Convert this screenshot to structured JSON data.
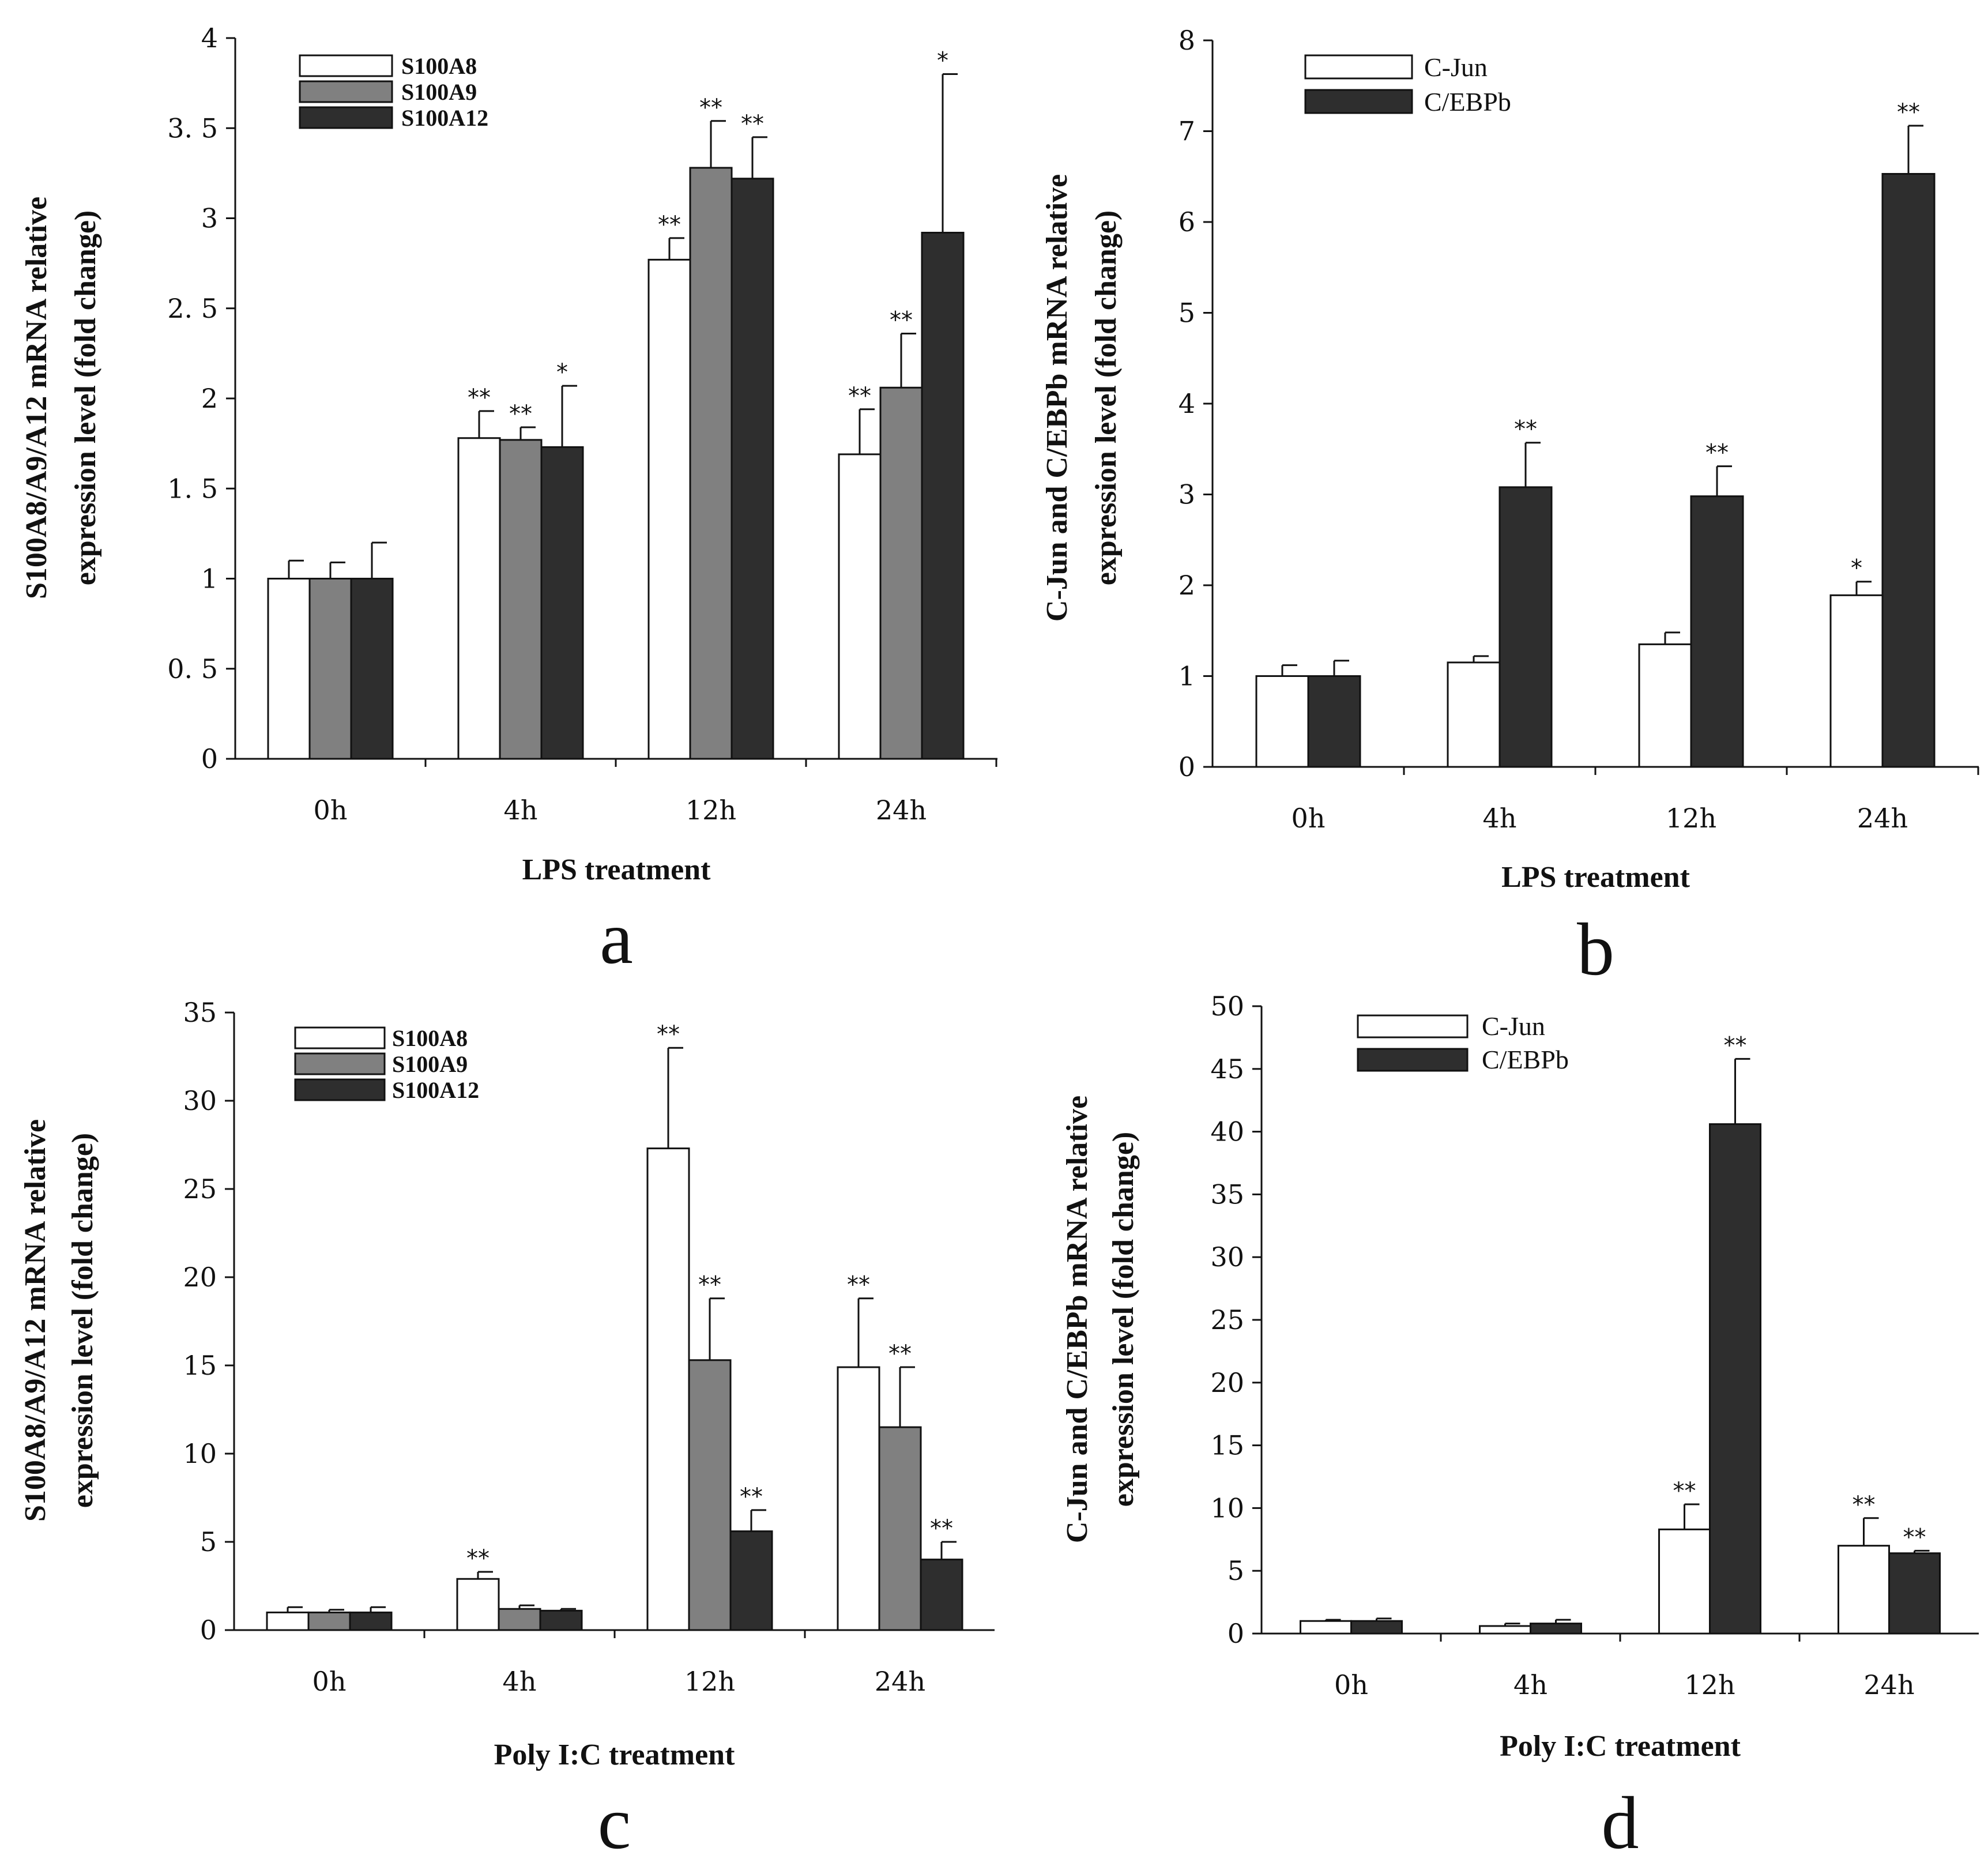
{
  "colors": {
    "S100A8": "#ffffff",
    "S100A9": "#808080",
    "S100A12": "#2e2e2e",
    "C-Jun": "#ffffff",
    "C/EBPb": "#2e2e2e",
    "stroke": "#111111"
  },
  "chart_data": [
    {
      "panel": "a",
      "type": "bar",
      "xlabel": "LPS treatment",
      "ylabel_lines": [
        "S100A8/A9/A12 mRNA relative",
        "expression level (fold change)"
      ],
      "ylim": [
        0,
        4
      ],
      "yticks": [
        0,
        0.5,
        1,
        1.5,
        2,
        2.5,
        3,
        3.5,
        4
      ],
      "ytick_labels": [
        "0",
        "0. 5",
        "1",
        "1. 5",
        "2",
        "2. 5",
        "3",
        "3. 5",
        "4"
      ],
      "categories": [
        "0h",
        "4h",
        "12h",
        "24h"
      ],
      "legend_style": "bold",
      "series": [
        {
          "name": "S100A8",
          "values": [
            1.0,
            1.78,
            2.77,
            1.69
          ],
          "errors": [
            0.1,
            0.15,
            0.12,
            0.25
          ],
          "sig": [
            "",
            "**",
            "**",
            "**"
          ]
        },
        {
          "name": "S100A9",
          "values": [
            1.0,
            1.77,
            3.28,
            2.06
          ],
          "errors": [
            0.09,
            0.07,
            0.26,
            0.3
          ],
          "sig": [
            "",
            "**",
            "**",
            "**"
          ]
        },
        {
          "name": "S100A12",
          "values": [
            1.0,
            1.73,
            3.22,
            2.92
          ],
          "errors": [
            0.2,
            0.34,
            0.23,
            0.88
          ],
          "sig": [
            "",
            "*",
            "**",
            "*"
          ]
        }
      ]
    },
    {
      "panel": "b",
      "type": "bar",
      "xlabel": "LPS treatment",
      "ylabel_lines": [
        "C-Jun and C/EBPb mRNA relative",
        "expression level (fold change)"
      ],
      "ylim": [
        0,
        8
      ],
      "yticks": [
        0,
        1,
        2,
        3,
        4,
        5,
        6,
        7,
        8
      ],
      "ytick_labels": [
        "0",
        "1",
        "2",
        "3",
        "4",
        "5",
        "6",
        "7",
        "8"
      ],
      "categories": [
        "0h",
        "4h",
        "12h",
        "24h"
      ],
      "legend_style": "plain",
      "series": [
        {
          "name": "C-Jun",
          "values": [
            1.0,
            1.15,
            1.35,
            1.89
          ],
          "errors": [
            0.12,
            0.07,
            0.13,
            0.15
          ],
          "sig": [
            "",
            "",
            "",
            "*"
          ]
        },
        {
          "name": "C/EBPb",
          "values": [
            1.0,
            3.08,
            2.98,
            6.53
          ],
          "errors": [
            0.17,
            0.49,
            0.33,
            0.53
          ],
          "sig": [
            "",
            "**",
            "**",
            "**"
          ]
        }
      ]
    },
    {
      "panel": "c",
      "type": "bar",
      "xlabel": "Poly I:C treatment",
      "ylabel_lines": [
        "S100A8/A9/A12 mRNA relative",
        "expression level (fold change)"
      ],
      "ylim": [
        0,
        35
      ],
      "yticks": [
        0,
        5,
        10,
        15,
        20,
        25,
        30,
        35
      ],
      "ytick_labels": [
        "0",
        "5",
        "10",
        "15",
        "20",
        "25",
        "30",
        "35"
      ],
      "categories": [
        "0h",
        "4h",
        "12h",
        "24h"
      ],
      "legend_style": "bold",
      "series": [
        {
          "name": "S100A8",
          "values": [
            1.0,
            2.9,
            27.3,
            14.9
          ],
          "errors": [
            0.3,
            0.4,
            5.7,
            3.9
          ],
          "sig": [
            "",
            "**",
            "**",
            "**"
          ]
        },
        {
          "name": "S100A9",
          "values": [
            1.0,
            1.2,
            15.3,
            11.5
          ],
          "errors": [
            0.15,
            0.2,
            3.5,
            3.4
          ],
          "sig": [
            "",
            "",
            "**",
            "**"
          ]
        },
        {
          "name": "S100A12",
          "values": [
            1.0,
            1.1,
            5.6,
            4.0
          ],
          "errors": [
            0.3,
            0.1,
            1.2,
            1.0
          ],
          "sig": [
            "",
            "",
            "**",
            "**"
          ]
        }
      ]
    },
    {
      "panel": "d",
      "type": "bar",
      "xlabel": "Poly I:C treatment",
      "ylabel_lines": [
        "C-Jun and C/EBPb mRNA relative",
        "expression level (fold change)"
      ],
      "ylim": [
        0,
        50
      ],
      "yticks": [
        0,
        5,
        10,
        15,
        20,
        25,
        30,
        35,
        40,
        45,
        50
      ],
      "ytick_labels": [
        "0",
        "5",
        "10",
        "15",
        "20",
        "25",
        "30",
        "35",
        "40",
        "45",
        "50"
      ],
      "categories": [
        "0h",
        "4h",
        "12h",
        "24h"
      ],
      "legend_style": "plain",
      "series": [
        {
          "name": "C-Jun",
          "values": [
            1.0,
            0.6,
            8.3,
            7.0
          ],
          "errors": [
            0.1,
            0.2,
            2.0,
            2.2
          ],
          "sig": [
            "",
            "",
            "**",
            "**"
          ]
        },
        {
          "name": "C/EBPb",
          "values": [
            1.0,
            0.8,
            40.6,
            6.4
          ],
          "errors": [
            0.2,
            0.3,
            5.2,
            0.2
          ],
          "sig": [
            "",
            "",
            "**",
            "**"
          ]
        }
      ]
    }
  ]
}
